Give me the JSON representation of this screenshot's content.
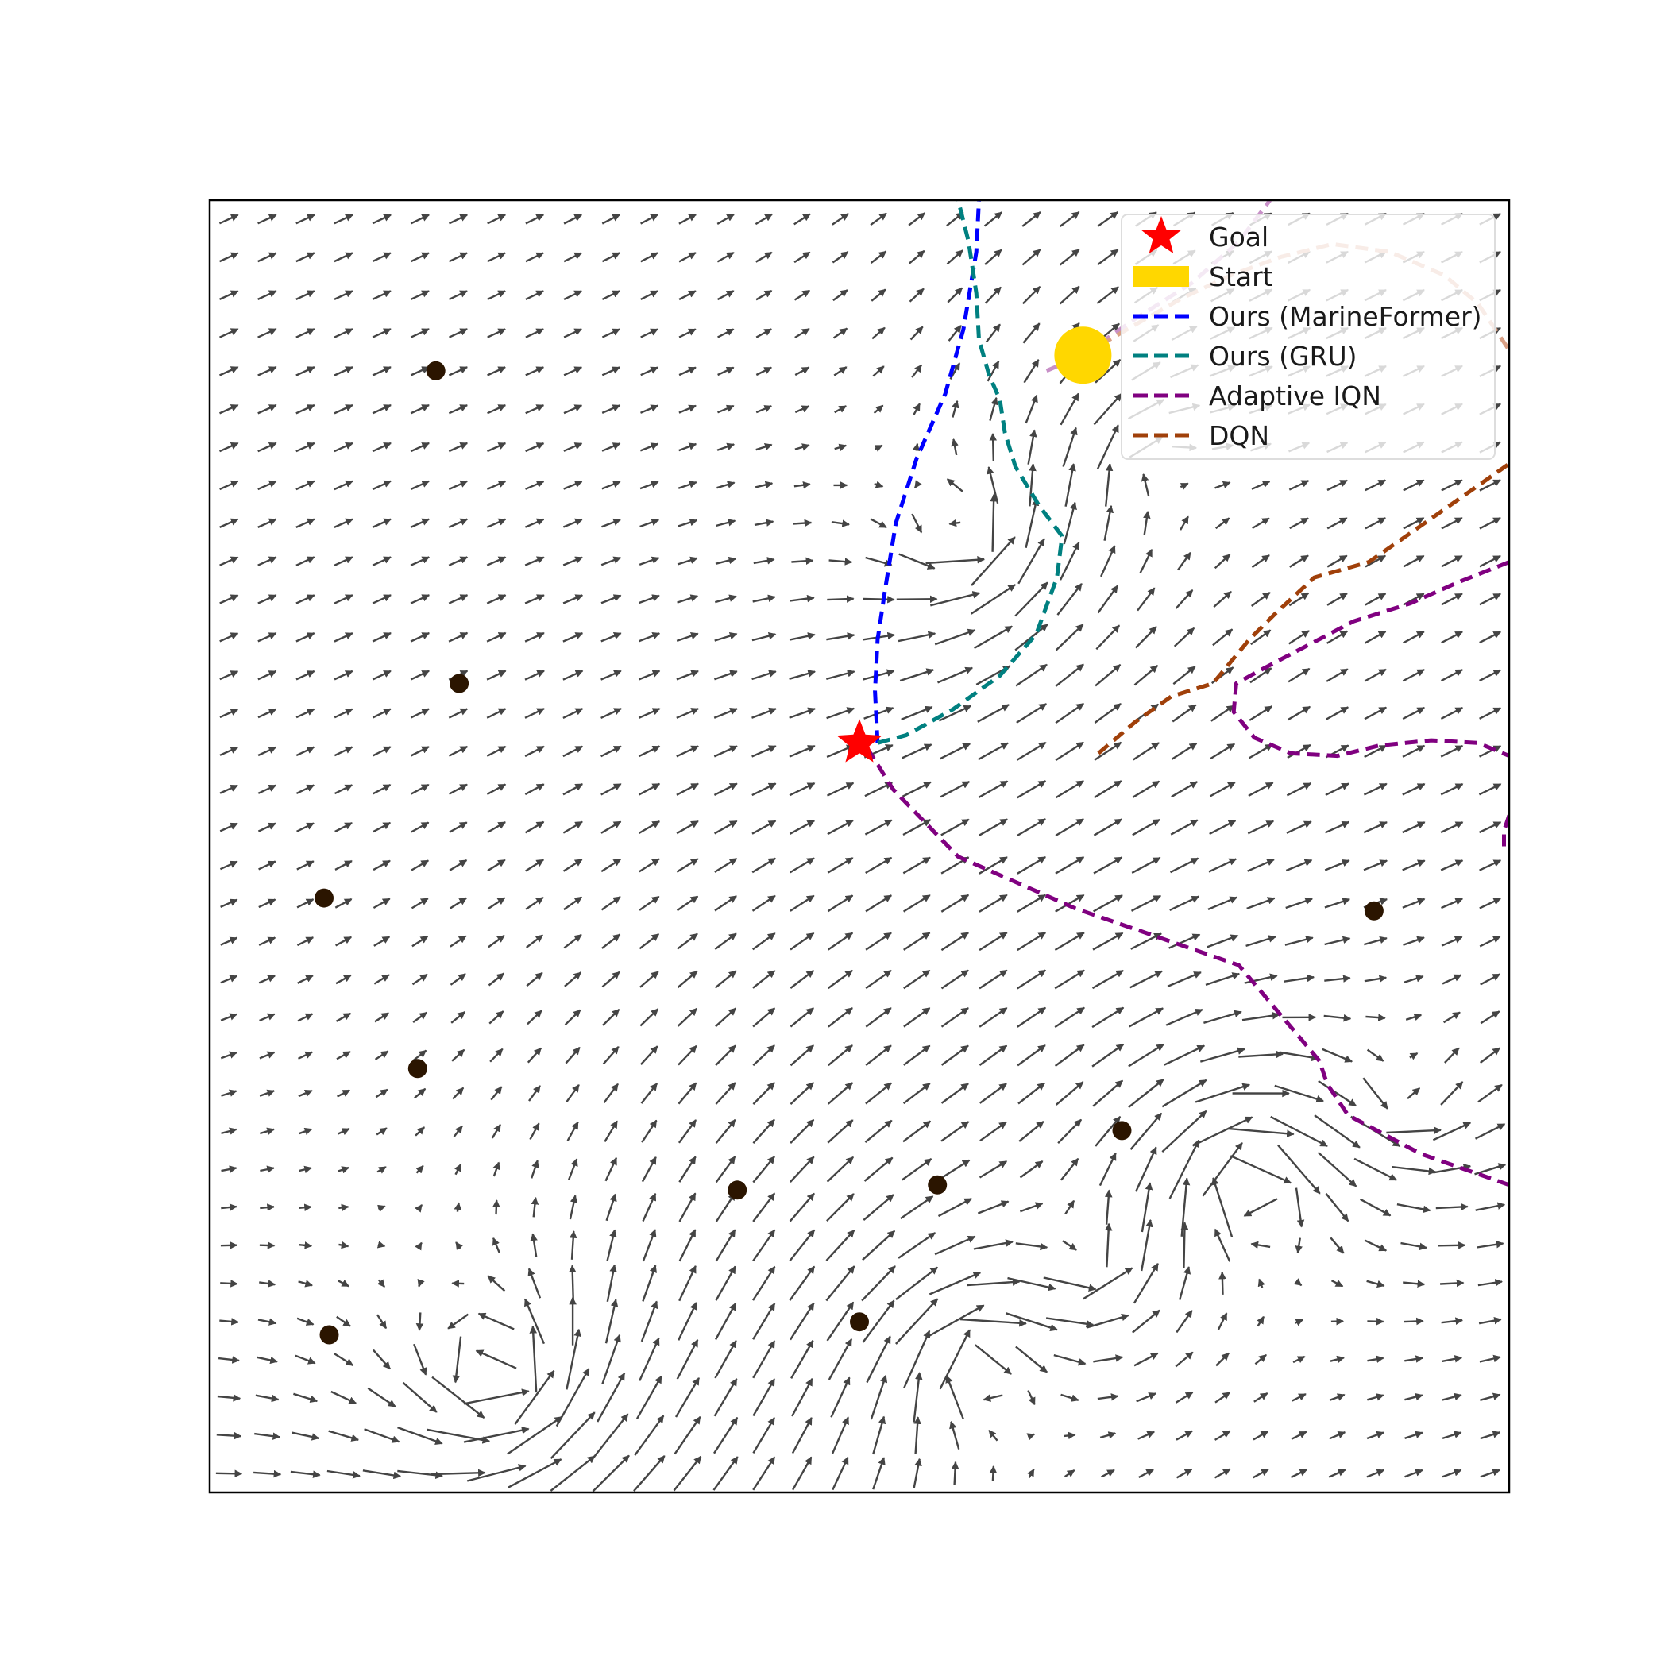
{
  "chart_data": {
    "type": "line",
    "title": "",
    "xlabel": "",
    "ylabel": "",
    "xlim": [
      0,
      50
    ],
    "ylim": [
      0,
      50
    ],
    "grid": false,
    "axis_ticks": false,
    "legend": {
      "position": "top-right",
      "entries": [
        {
          "label": "Goal",
          "marker": "star",
          "color": "#ff0000"
        },
        {
          "label": "Start",
          "marker": "patch",
          "color": "#ffd700"
        },
        {
          "label": "Ours (MarineFormer)",
          "marker": "dashed-line",
          "color": "#0000ff"
        },
        {
          "label": "Ours (GRU)",
          "marker": "dashed-line",
          "color": "#008080"
        },
        {
          "label": "Adaptive IQN",
          "marker": "dashed-line",
          "color": "#800080"
        },
        {
          "label": "DQN",
          "marker": "dashed-line",
          "color": "#a0400a"
        }
      ]
    },
    "goal": {
      "x": 25.0,
      "y": 29.0,
      "color": "#ff0000"
    },
    "start": {
      "x": 33.6,
      "y": 44.0,
      "color": "#ffd700"
    },
    "obstacles": [
      {
        "x": 8.7,
        "y": 43.4
      },
      {
        "x": 9.6,
        "y": 31.3
      },
      {
        "x": 4.4,
        "y": 23.0
      },
      {
        "x": 8.0,
        "y": 16.4
      },
      {
        "x": 20.3,
        "y": 11.7
      },
      {
        "x": 28.0,
        "y": 11.9
      },
      {
        "x": 35.1,
        "y": 14.0
      },
      {
        "x": 44.8,
        "y": 22.5
      },
      {
        "x": 25.0,
        "y": 6.6
      },
      {
        "x": 4.6,
        "y": 6.1
      }
    ],
    "series": [
      {
        "name": "Ours (MarineFormer)",
        "color": "#0000ff",
        "points": [
          [
            25.7,
            29.0
          ],
          [
            25.6,
            31.0
          ],
          [
            25.7,
            33.0
          ],
          [
            26.0,
            35.0
          ],
          [
            26.4,
            37.5
          ],
          [
            27.2,
            40.0
          ],
          [
            28.3,
            42.5
          ],
          [
            29.0,
            45.0
          ],
          [
            29.5,
            48.0
          ],
          [
            29.6,
            50.0
          ]
        ]
      },
      {
        "name": "Ours (GRU)",
        "color": "#008080",
        "points": [
          [
            25.7,
            29.0
          ],
          [
            26.8,
            29.3
          ],
          [
            28.6,
            30.3
          ],
          [
            30.4,
            31.6
          ],
          [
            31.8,
            33.2
          ],
          [
            32.6,
            35.4
          ],
          [
            32.8,
            37.0
          ],
          [
            31.9,
            38.2
          ],
          [
            31.0,
            39.7
          ],
          [
            30.6,
            41.0
          ],
          [
            30.4,
            42.3
          ],
          [
            30.0,
            43.2
          ],
          [
            29.6,
            44.6
          ],
          [
            29.5,
            46.4
          ],
          [
            29.2,
            48.4
          ],
          [
            28.8,
            50.0
          ]
        ]
      },
      {
        "name": "Adaptive IQN",
        "color": "#800080",
        "points": [
          [
            25.3,
            28.8
          ],
          [
            26.3,
            27.2
          ],
          [
            28.8,
            24.6
          ],
          [
            33.3,
            22.6
          ],
          [
            39.6,
            20.4
          ],
          [
            42.7,
            16.7
          ],
          [
            43.0,
            15.8
          ],
          [
            43.8,
            14.6
          ],
          [
            46.6,
            13.1
          ],
          [
            50.0,
            11.9
          ]
        ]
      },
      {
        "name": "Adaptive IQN (loop)",
        "color": "#800080",
        "points": [
          [
            50.0,
            36.0
          ],
          [
            48.0,
            35.2
          ],
          [
            46.2,
            34.4
          ],
          [
            44.0,
            33.7
          ],
          [
            40.4,
            31.8
          ],
          [
            39.5,
            31.3
          ],
          [
            39.4,
            30.2
          ],
          [
            40.2,
            29.2
          ],
          [
            41.6,
            28.6
          ],
          [
            43.4,
            28.5
          ],
          [
            45.0,
            28.9
          ],
          [
            47.0,
            29.1
          ],
          [
            48.8,
            29.0
          ],
          [
            50.0,
            28.5
          ]
        ]
      },
      {
        "name": "Adaptive IQN (edge)",
        "color": "#800080",
        "points": [
          [
            50.0,
            26.2
          ],
          [
            49.8,
            25.6
          ],
          [
            49.8,
            25.0
          ]
        ]
      },
      {
        "name": "Adaptive IQN (faded)",
        "color": "#c890c8",
        "points": [
          [
            32.2,
            43.4
          ],
          [
            33.6,
            44.0
          ],
          [
            35.6,
            45.4
          ],
          [
            37.8,
            46.8
          ],
          [
            39.6,
            48.4
          ],
          [
            40.8,
            50.0
          ]
        ]
      },
      {
        "name": "DQN",
        "color": "#a0400a",
        "points": [
          [
            34.2,
            28.6
          ],
          [
            35.6,
            29.8
          ],
          [
            37.0,
            30.8
          ],
          [
            38.6,
            31.3
          ],
          [
            40.0,
            33.0
          ],
          [
            41.0,
            34.0
          ],
          [
            42.5,
            35.4
          ],
          [
            44.6,
            36.0
          ],
          [
            46.6,
            37.4
          ],
          [
            48.3,
            38.6
          ],
          [
            50.0,
            39.8
          ]
        ]
      },
      {
        "name": "DQN (faded)",
        "color": "#d9a085",
        "points": [
          [
            33.6,
            44.0
          ],
          [
            35.3,
            45.0
          ],
          [
            37.4,
            46.2
          ],
          [
            39.3,
            47.1
          ],
          [
            41.2,
            47.8
          ],
          [
            43.2,
            48.3
          ],
          [
            45.4,
            48.0
          ],
          [
            47.5,
            47.1
          ],
          [
            48.8,
            46.0
          ],
          [
            50.0,
            44.2
          ]
        ]
      }
    ],
    "vector_field": {
      "color": "#444444",
      "grid_x": [
        0,
        50,
        34
      ],
      "grid_y": [
        0,
        50,
        34
      ],
      "base_flow": [
        1.0,
        0.45
      ],
      "vortices": [
        {
          "x": 29.0,
          "y": 37.0,
          "strength": 18
        },
        {
          "x": 36.0,
          "y": 40.0,
          "strength": -10
        },
        {
          "x": 11.0,
          "y": 4.5,
          "strength": 30
        },
        {
          "x": 29.5,
          "y": 5.0,
          "strength": -22
        },
        {
          "x": 40.0,
          "y": 12.0,
          "strength": -28
        },
        {
          "x": 34.0,
          "y": 9.0,
          "strength": 14
        },
        {
          "x": 46.0,
          "y": 15.0,
          "strength": 12
        }
      ]
    }
  }
}
